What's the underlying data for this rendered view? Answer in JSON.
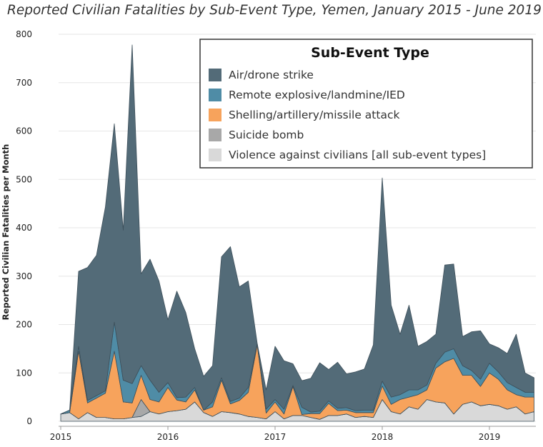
{
  "chart_data": {
    "type": "area",
    "stacked": true,
    "title": "Reported Civilian Fatalities by Sub-Event Type, Yemen, January 2015 - June 2019",
    "ylabel": "Reported Civilian Fatalities per Month",
    "xlabel": "",
    "ylim": [
      0,
      800
    ],
    "yticks": [
      0,
      100,
      200,
      300,
      400,
      500,
      600,
      700,
      800
    ],
    "xticks": [
      "2015",
      "2016",
      "2017",
      "2018",
      "2019"
    ],
    "grid": true,
    "legend": {
      "title": "Sub-Event Type",
      "placement": "top-right"
    },
    "x_start": "2015-01",
    "x": [
      "2015-01",
      "2015-02",
      "2015-03",
      "2015-04",
      "2015-05",
      "2015-06",
      "2015-07",
      "2015-08",
      "2015-09",
      "2015-10",
      "2015-11",
      "2015-12",
      "2016-01",
      "2016-02",
      "2016-03",
      "2016-04",
      "2016-05",
      "2016-06",
      "2016-07",
      "2016-08",
      "2016-09",
      "2016-10",
      "2016-11",
      "2016-12",
      "2017-01",
      "2017-02",
      "2017-03",
      "2017-04",
      "2017-05",
      "2017-06",
      "2017-07",
      "2017-08",
      "2017-09",
      "2017-10",
      "2017-11",
      "2017-12",
      "2018-01",
      "2018-02",
      "2018-03",
      "2018-04",
      "2018-05",
      "2018-06",
      "2018-07",
      "2018-08",
      "2018-09",
      "2018-10",
      "2018-11",
      "2018-12",
      "2019-01",
      "2019-02",
      "2019-03",
      "2019-04",
      "2019-05",
      "2019-06"
    ],
    "series": [
      {
        "name": "Violence against civilians [all sub-event types]",
        "color": "#d9d9d9",
        "values": [
          15,
          18,
          5,
          18,
          8,
          8,
          5,
          5,
          8,
          10,
          20,
          15,
          20,
          22,
          25,
          40,
          18,
          10,
          20,
          18,
          15,
          10,
          8,
          5,
          20,
          5,
          12,
          12,
          8,
          4,
          12,
          12,
          15,
          8,
          10,
          8,
          45,
          20,
          15,
          30,
          25,
          45,
          40,
          38,
          15,
          35,
          40,
          32,
          35,
          32,
          25,
          30,
          15,
          20
        ]
      },
      {
        "name": "Suicide bomb",
        "color": "#a8a8a8",
        "values": [
          0,
          0,
          0,
          0,
          0,
          0,
          0,
          0,
          0,
          35,
          0,
          0,
          0,
          0,
          0,
          0,
          0,
          0,
          0,
          0,
          0,
          0,
          0,
          0,
          0,
          0,
          0,
          0,
          0,
          0,
          0,
          0,
          0,
          0,
          0,
          0,
          0,
          0,
          0,
          0,
          0,
          0,
          0,
          0,
          0,
          0,
          0,
          0,
          0,
          0,
          0,
          0,
          0,
          0
        ]
      },
      {
        "name": "Shelling/artillery/missile attack",
        "color": "#f7a35c",
        "values": [
          0,
          0,
          140,
          20,
          40,
          50,
          140,
          35,
          30,
          50,
          25,
          25,
          50,
          22,
          15,
          25,
          5,
          20,
          65,
          18,
          28,
          50,
          150,
          12,
          20,
          10,
          60,
          2,
          8,
          12,
          25,
          10,
          8,
          10,
          8,
          10,
          28,
          15,
          30,
          20,
          30,
          20,
          70,
          85,
          115,
          60,
          55,
          40,
          65,
          55,
          40,
          25,
          35,
          30
        ]
      },
      {
        "name": "Remote explosive/landmine/IED",
        "color": "#4f8ca6",
        "values": [
          0,
          5,
          10,
          5,
          5,
          5,
          60,
          45,
          40,
          20,
          40,
          20,
          10,
          5,
          10,
          5,
          0,
          10,
          5,
          5,
          5,
          10,
          3,
          8,
          5,
          10,
          2,
          15,
          3,
          5,
          5,
          5,
          5,
          4,
          5,
          5,
          10,
          15,
          10,
          15,
          10,
          10,
          10,
          20,
          20,
          20,
          10,
          15,
          20,
          15,
          15,
          15,
          10,
          10
        ]
      },
      {
        "name": "Air/drone strike",
        "color": "#536b78",
        "values": [
          0,
          0,
          155,
          275,
          290,
          380,
          410,
          310,
          700,
          190,
          250,
          230,
          130,
          220,
          175,
          80,
          70,
          75,
          250,
          320,
          230,
          220,
          0,
          40,
          110,
          100,
          45,
          55,
          70,
          100,
          65,
          95,
          70,
          80,
          85,
          135,
          420,
          190,
          125,
          175,
          90,
          90,
          60,
          180,
          175,
          60,
          80,
          100,
          40,
          50,
          60,
          110,
          40,
          30
        ]
      }
    ]
  }
}
